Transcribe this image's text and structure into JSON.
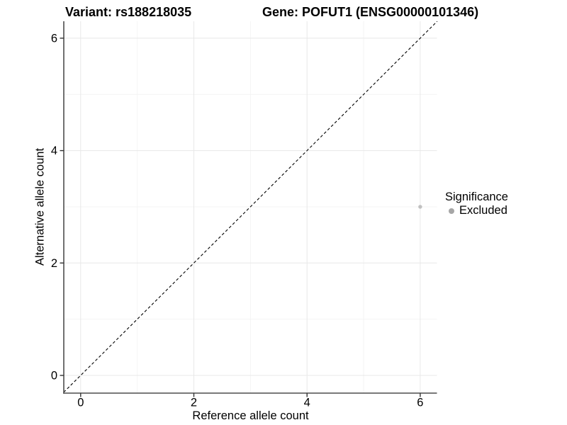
{
  "chart_data": {
    "type": "scatter",
    "title_left": "Variant: rs188218035",
    "title_right": "Gene: POFUT1 (ENSG00000101346)",
    "xlabel": "Reference allele count",
    "ylabel": "Alternative allele count",
    "xlim": [
      -0.3,
      6.3
    ],
    "ylim": [
      -0.3,
      6.3
    ],
    "x_ticks": [
      0,
      2,
      4,
      6
    ],
    "y_ticks": [
      0,
      2,
      4,
      6
    ],
    "x_minor_ticks": [
      1,
      3,
      5
    ],
    "y_minor_ticks": [
      1,
      3,
      5
    ],
    "grid": "major+minor",
    "identity_line": {
      "style": "dashed",
      "from": [
        -0.3,
        -0.3
      ],
      "to": [
        6.3,
        6.3
      ],
      "color": "#000000"
    },
    "series": [
      {
        "name": "Excluded",
        "color": "#c0c0c0",
        "point_radius": 2.7,
        "points": [
          {
            "x": 6,
            "y": 3
          }
        ]
      }
    ],
    "legend": {
      "title": "Significance",
      "position": "right",
      "entries": [
        {
          "label": "Excluded",
          "color": "#a6a6a6"
        }
      ]
    },
    "colors": {
      "grid_major": "#e8e8e8",
      "grid_minor": "#f4f4f4",
      "axis_line": "#4d4d4d",
      "tick_mark": "#333333",
      "tick_label": "#000000"
    }
  }
}
